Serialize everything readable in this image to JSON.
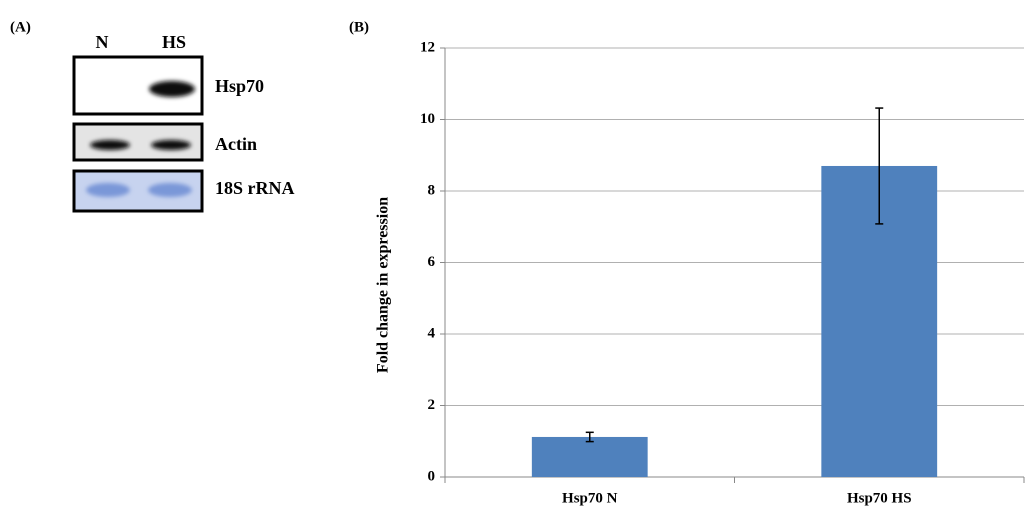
{
  "panel_a": {
    "label": "(A)",
    "lanes": [
      "N",
      "HS"
    ],
    "bands": [
      "Hsp70",
      "Actin",
      "18S rRNA"
    ]
  },
  "chart_data": {
    "type": "bar",
    "label": "(B)",
    "y_label": "Fold change in expression",
    "categories": [
      "Hsp70 N",
      "Hsp70 HS"
    ],
    "values": [
      1.12,
      8.7
    ],
    "errors": [
      0.13,
      1.62
    ],
    "color": "#4f81bd",
    "ylim": [
      0,
      12
    ],
    "yticks": [
      0,
      2,
      4,
      6,
      8,
      10,
      12
    ],
    "grid": true
  }
}
